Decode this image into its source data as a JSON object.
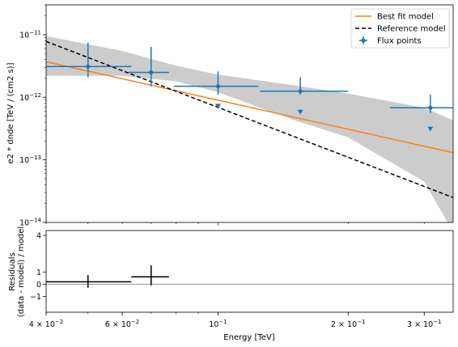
{
  "chart_data": [
    {
      "type": "line",
      "role": "spectrum",
      "xscale": "log",
      "yscale": "log",
      "xlim": [
        0.04,
        0.35
      ],
      "ylim": [
        1e-14,
        3e-11
      ],
      "xlabel": "",
      "ylabel": "e2 * dnde [TeV / (cm2 s)]",
      "yticks": [
        {
          "value": 1e-14,
          "base": "10",
          "exp": "−14"
        },
        {
          "value": 1e-13,
          "base": "10",
          "exp": "−13"
        },
        {
          "value": 1e-12,
          "base": "10",
          "exp": "−12"
        },
        {
          "value": 1e-11,
          "base": "10",
          "exp": "−11"
        }
      ],
      "legend": {
        "position": "top-right",
        "entries": [
          "Best fit model",
          "Reference model",
          "Flux points"
        ]
      },
      "colors": {
        "best_fit": "#ff7f0e",
        "points": "#1f77b4",
        "band": "#cccccc",
        "reference": "#000000"
      },
      "best_fit": {
        "name": "Best fit model",
        "x": [
          0.04,
          0.35
        ],
        "y": [
          3.7e-12,
          1.3e-13
        ]
      },
      "reference": {
        "name": "Reference model",
        "x": [
          0.04,
          0.35
        ],
        "y": [
          7.8e-12,
          2.5e-14
        ]
      },
      "band": {
        "x": [
          0.04,
          0.06,
          0.08,
          0.1,
          0.15,
          0.2,
          0.3,
          0.35
        ],
        "upper": [
          9.5e-12,
          5.5e-12,
          3.2e-12,
          2.3e-12,
          1.55e-12,
          1.15e-12,
          6.8e-13,
          4.3e-13
        ],
        "lower": [
          2.2e-12,
          2.2e-12,
          1.8e-12,
          1.2e-12,
          4.3e-13,
          2.3e-13,
          4.5e-14,
          7e-15
        ]
      },
      "flux_points": {
        "name": "Flux points",
        "x": [
          0.05,
          0.07,
          0.1,
          0.155,
          0.31
        ],
        "x_min": [
          0.04,
          0.062,
          0.079,
          0.125,
          0.25
        ],
        "x_max": [
          0.063,
          0.077,
          0.124,
          0.2,
          0.35
        ],
        "y": [
          3.1e-12,
          2.5e-12,
          1.5e-12,
          1.25e-12,
          6.8e-13
        ],
        "y_low": [
          2.1e-12,
          1.5e-12,
          1.1e-12,
          1.1e-12,
          5.6e-13
        ],
        "y_high": [
          7.4e-12,
          6.4e-12,
          2.6e-12,
          2.1e-12,
          1.1e-12
        ]
      },
      "upper_limits": {
        "x": [
          0.1,
          0.155,
          0.31
        ],
        "y": [
          7.2e-13,
          5.8e-13,
          3.1e-13
        ]
      }
    },
    {
      "type": "scatter",
      "role": "residuals",
      "xscale": "log",
      "xlim": [
        0.04,
        0.35
      ],
      "ylim": [
        -2.3,
        4.4
      ],
      "xlabel": "Energy [TeV]",
      "ylabel": "Residuals\n(data - model) / model",
      "yticks": [
        {
          "value": -1,
          "label": "−1"
        },
        {
          "value": 0,
          "label": "0"
        },
        {
          "value": 1,
          "label": "1"
        },
        {
          "value": 4,
          "label": "4"
        }
      ],
      "xticks": [
        {
          "value": 0.04,
          "base": "4 × 10",
          "exp": "−2"
        },
        {
          "value": 0.06,
          "base": "6 × 10",
          "exp": "−2"
        },
        {
          "value": 0.1,
          "base": "10",
          "exp": "−1"
        },
        {
          "value": 0.2,
          "base": "2 × 10",
          "exp": "−1"
        },
        {
          "value": 0.3,
          "base": "3 × 10",
          "exp": "−1"
        }
      ],
      "zero_line": 0,
      "points": {
        "x": [
          0.05,
          0.07
        ],
        "x_min": [
          0.04,
          0.063
        ],
        "x_max": [
          0.063,
          0.077
        ],
        "y": [
          0.2,
          0.6
        ],
        "y_low": [
          -0.3,
          -0.1
        ],
        "y_high": [
          0.75,
          1.55
        ]
      }
    }
  ]
}
